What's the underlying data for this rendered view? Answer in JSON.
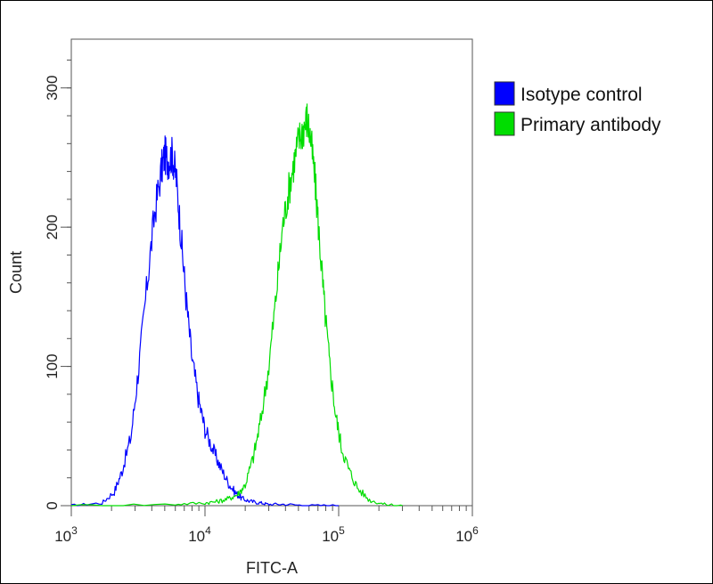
{
  "chart_data": {
    "type": "line",
    "title": "",
    "xlabel": "FITC-A",
    "ylabel": "Count",
    "x_scale": "log",
    "xlim": [
      1000,
      1000000
    ],
    "ylim": [
      0,
      335
    ],
    "x_ticks": [
      {
        "value": 1000,
        "base": "10",
        "exp": "3"
      },
      {
        "value": 10000,
        "base": "10",
        "exp": "4"
      },
      {
        "value": 100000,
        "base": "10",
        "exp": "5"
      },
      {
        "value": 1000000,
        "base": "10",
        "exp": "6"
      }
    ],
    "y_ticks": [
      0,
      100,
      200,
      300
    ],
    "grid": false,
    "legend_position": "right",
    "series": [
      {
        "name": "Isotype control",
        "color": "#0000ff",
        "x": [
          1000,
          1700,
          2100,
          2400,
          2800,
          3200,
          3700,
          4200,
          4700,
          5000,
          5300,
          5700,
          6100,
          6600,
          7200,
          8000,
          9000,
          10000,
          11500,
          13000,
          15000,
          17000,
          19000,
          22000,
          26000,
          30000,
          40000,
          60000,
          100000
        ],
        "y": [
          0,
          2,
          10,
          25,
          50,
          100,
          160,
          210,
          240,
          252,
          248,
          252,
          235,
          195,
          150,
          105,
          75,
          55,
          40,
          28,
          16,
          9,
          5,
          3,
          2,
          1,
          1,
          0,
          0
        ]
      },
      {
        "name": "Primary antibody",
        "color": "#00dd00",
        "x": [
          1000,
          6000,
          10000,
          12500,
          15000,
          17500,
          20000,
          23000,
          26000,
          30000,
          34000,
          38000,
          42000,
          46000,
          50000,
          54000,
          58000,
          62000,
          67000,
          72000,
          78000,
          85000,
          95000,
          105000,
          120000,
          140000,
          170000,
          220000,
          300000
        ],
        "y": [
          0,
          1,
          2,
          3,
          5,
          8,
          15,
          35,
          60,
          100,
          150,
          200,
          225,
          245,
          262,
          270,
          278,
          262,
          230,
          190,
          145,
          105,
          65,
          42,
          25,
          12,
          4,
          1,
          0
        ]
      }
    ]
  }
}
